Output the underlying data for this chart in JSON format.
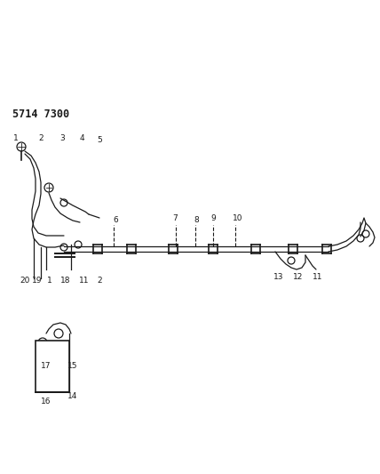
{
  "title": "5714 7300",
  "background_color": "#ffffff",
  "line_color": "#1a1a1a",
  "text_color": "#1a1a1a",
  "line_width": 0.9,
  "fig_width": 4.28,
  "fig_height": 5.33,
  "dpi": 100
}
